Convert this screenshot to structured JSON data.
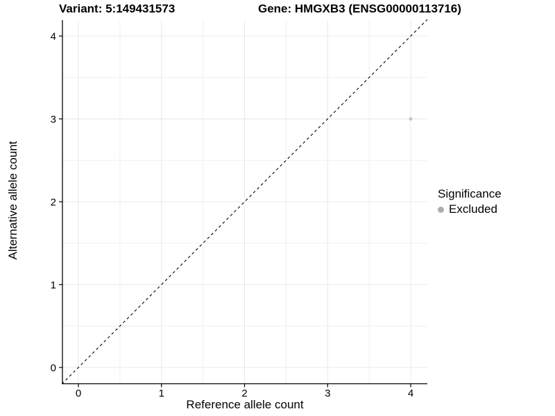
{
  "chart_data": {
    "type": "scatter",
    "title_left": "Variant: 5:149431573",
    "title_right": "Gene: HMGXB3 (ENSG00000113716)",
    "xlabel": "Reference allele count",
    "ylabel": "Alternative allele count",
    "xlim": [
      -0.2,
      4.2
    ],
    "ylim": [
      -0.2,
      4.2
    ],
    "x_ticks": [
      0,
      1,
      2,
      3,
      4
    ],
    "y_ticks": [
      0,
      1,
      2,
      3,
      4
    ],
    "grid": {
      "major": true,
      "minor": true,
      "major_color": "#e8e8e8",
      "minor_color": "#efefef"
    },
    "identity_line": {
      "slope": 1,
      "intercept": 0,
      "style": "dashed",
      "color": "#000000"
    },
    "points": [
      {
        "x": 4,
        "y": 3,
        "significance": "Excluded"
      }
    ],
    "point_color": "#c2c2c2",
    "point_radius": 2.4,
    "axis_color": "#000000",
    "text_color": "#000000",
    "tick_font_size": 15,
    "legend": {
      "title": "Significance",
      "position": "right",
      "items": [
        {
          "label": "Excluded",
          "color": "#adadad",
          "marker": "circle"
        }
      ]
    }
  }
}
